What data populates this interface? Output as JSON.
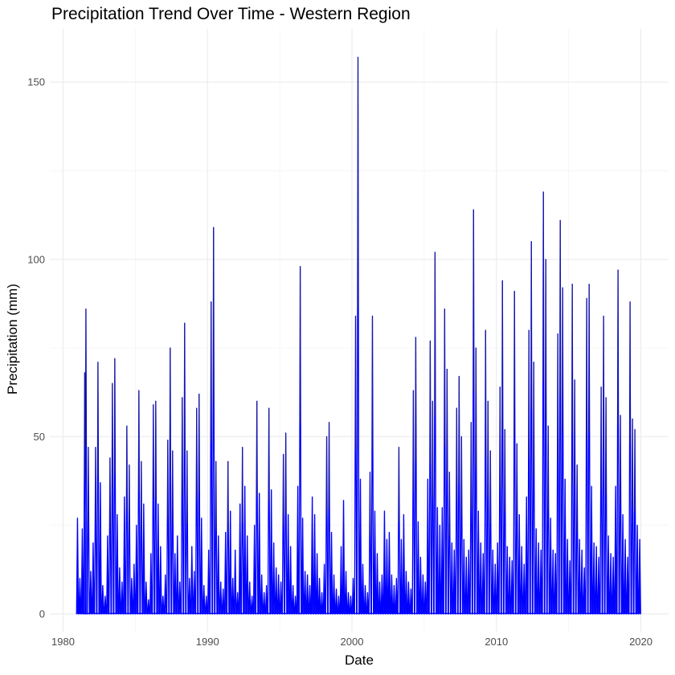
{
  "chart_data": {
    "type": "line",
    "title": "Precipitation Trend Over Time - Western Region",
    "xlabel": "Date",
    "ylabel": "Precipitation (mm)",
    "x_ticks": [
      "1980",
      "1990",
      "2000",
      "2010",
      "2020"
    ],
    "y_ticks": [
      "0",
      "50",
      "100",
      "150"
    ],
    "xlim": [
      "1979-02",
      "2021-12"
    ],
    "ylim": [
      -5,
      165
    ],
    "grid": true,
    "legend": "none",
    "series": [
      {
        "color": "#0000ff",
        "dark_color": "#1a1a8c",
        "x": [
          "1981-01",
          "1981-03",
          "1981-05",
          "1981-07",
          "1981-08",
          "1981-10",
          "1981-12",
          "1982-02",
          "1982-04",
          "1982-06",
          "1982-08",
          "1982-10",
          "1982-12",
          "1983-02",
          "1983-04",
          "1983-06",
          "1983-08",
          "1983-10",
          "1983-12",
          "1984-02",
          "1984-04",
          "1984-06",
          "1984-08",
          "1984-10",
          "1984-12",
          "1985-02",
          "1985-04",
          "1985-06",
          "1985-08",
          "1985-10",
          "1985-12",
          "1986-02",
          "1986-04",
          "1986-06",
          "1986-08",
          "1986-10",
          "1986-12",
          "1987-02",
          "1987-04",
          "1987-06",
          "1987-08",
          "1987-10",
          "1987-12",
          "1988-02",
          "1988-04",
          "1988-06",
          "1988-08",
          "1988-10",
          "1988-12",
          "1989-02",
          "1989-04",
          "1989-06",
          "1989-08",
          "1989-10",
          "1989-12",
          "1990-02",
          "1990-04",
          "1990-06",
          "1990-08",
          "1990-10",
          "1990-12",
          "1991-02",
          "1991-04",
          "1991-06",
          "1991-08",
          "1991-10",
          "1991-12",
          "1992-02",
          "1992-04",
          "1992-06",
          "1992-08",
          "1992-10",
          "1992-12",
          "1993-02",
          "1993-04",
          "1993-06",
          "1993-08",
          "1993-10",
          "1993-12",
          "1994-02",
          "1994-04",
          "1994-06",
          "1994-08",
          "1994-10",
          "1994-12",
          "1995-02",
          "1995-04",
          "1995-06",
          "1995-08",
          "1995-10",
          "1995-12",
          "1996-02",
          "1996-04",
          "1996-06",
          "1996-08",
          "1996-10",
          "1996-12",
          "1997-02",
          "1997-04",
          "1997-06",
          "1997-08",
          "1997-10",
          "1997-12",
          "1998-02",
          "1998-04",
          "1998-06",
          "1998-08",
          "1998-10",
          "1998-12",
          "1999-02",
          "1999-04",
          "1999-06",
          "1999-08",
          "1999-10",
          "1999-12",
          "2000-02",
          "2000-04",
          "2000-06",
          "2000-08",
          "2000-10",
          "2000-12",
          "2001-02",
          "2001-04",
          "2001-06",
          "2001-08",
          "2001-10",
          "2001-12",
          "2002-02",
          "2002-04",
          "2002-06",
          "2002-08",
          "2002-10",
          "2002-12",
          "2003-02",
          "2003-04",
          "2003-06",
          "2003-08",
          "2003-10",
          "2003-12",
          "2004-02",
          "2004-04",
          "2004-06",
          "2004-08",
          "2004-10",
          "2004-12",
          "2005-02",
          "2005-04",
          "2005-06",
          "2005-08",
          "2005-10",
          "2005-12",
          "2006-02",
          "2006-04",
          "2006-06",
          "2006-08",
          "2006-10",
          "2006-12",
          "2007-02",
          "2007-04",
          "2007-06",
          "2007-08",
          "2007-10",
          "2007-12",
          "2008-02",
          "2008-04",
          "2008-06",
          "2008-08",
          "2008-10",
          "2008-12",
          "2009-02",
          "2009-04",
          "2009-06",
          "2009-08",
          "2009-10",
          "2009-12",
          "2010-02",
          "2010-04",
          "2010-06",
          "2010-08",
          "2010-10",
          "2010-12",
          "2011-02",
          "2011-04",
          "2011-06",
          "2011-08",
          "2011-10",
          "2011-12",
          "2012-02",
          "2012-04",
          "2012-06",
          "2012-08",
          "2012-10",
          "2012-12",
          "2013-02",
          "2013-04",
          "2013-06",
          "2013-08",
          "2013-10",
          "2013-12",
          "2014-02",
          "2014-04",
          "2014-06",
          "2014-08",
          "2014-10",
          "2014-12",
          "2015-02",
          "2015-04",
          "2015-06",
          "2015-08",
          "2015-10",
          "2015-12",
          "2016-02",
          "2016-04",
          "2016-06",
          "2016-08",
          "2016-10",
          "2016-12",
          "2017-02",
          "2017-04",
          "2017-06",
          "2017-08",
          "2017-10",
          "2017-12",
          "2018-02",
          "2018-04",
          "2018-06",
          "2018-08",
          "2018-10",
          "2018-12",
          "2019-02",
          "2019-04",
          "2019-06",
          "2019-08",
          "2019-10",
          "2019-12"
        ],
        "y": [
          27,
          10,
          24,
          68,
          86,
          47,
          12,
          20,
          47,
          71,
          37,
          8,
          5,
          22,
          44,
          65,
          72,
          28,
          13,
          9,
          33,
          53,
          42,
          10,
          14,
          25,
          63,
          43,
          31,
          9,
          4,
          17,
          59,
          60,
          31,
          19,
          5,
          11,
          49,
          75,
          46,
          17,
          22,
          9,
          61,
          82,
          46,
          10,
          19,
          12,
          58,
          62,
          27,
          8,
          5,
          18,
          88,
          109,
          43,
          22,
          9,
          7,
          23,
          43,
          29,
          10,
          18,
          6,
          31,
          47,
          36,
          22,
          9,
          5,
          25,
          60,
          34,
          11,
          6,
          8,
          58,
          35,
          20,
          13,
          11,
          9,
          45,
          51,
          28,
          19,
          8,
          5,
          36,
          98,
          27,
          12,
          11,
          8,
          33,
          28,
          17,
          10,
          6,
          14,
          50,
          54,
          23,
          11,
          7,
          5,
          19,
          32,
          12,
          6,
          5,
          10,
          84,
          157,
          38,
          14,
          8,
          6,
          40,
          84,
          29,
          17,
          9,
          11,
          29,
          21,
          23,
          11,
          8,
          10,
          47,
          21,
          28,
          12,
          9,
          7,
          63,
          78,
          26,
          16,
          11,
          9,
          38,
          77,
          60,
          102,
          30,
          25,
          30,
          86,
          69,
          40,
          20,
          18,
          58,
          67,
          50,
          21,
          16,
          18,
          54,
          114,
          75,
          29,
          20,
          17,
          80,
          60,
          46,
          18,
          14,
          20,
          64,
          94,
          52,
          19,
          16,
          15,
          91,
          48,
          28,
          19,
          14,
          33,
          80,
          105,
          71,
          24,
          20,
          18,
          119,
          100,
          53,
          27,
          18,
          17,
          79,
          111,
          92,
          38,
          21,
          15,
          93,
          66,
          42,
          21,
          18,
          13,
          89,
          93,
          36,
          20,
          19,
          16,
          64,
          84,
          61,
          22,
          17,
          16,
          36,
          97,
          56,
          28,
          21,
          16,
          88,
          55,
          52,
          25,
          21
        ]
      }
    ]
  }
}
